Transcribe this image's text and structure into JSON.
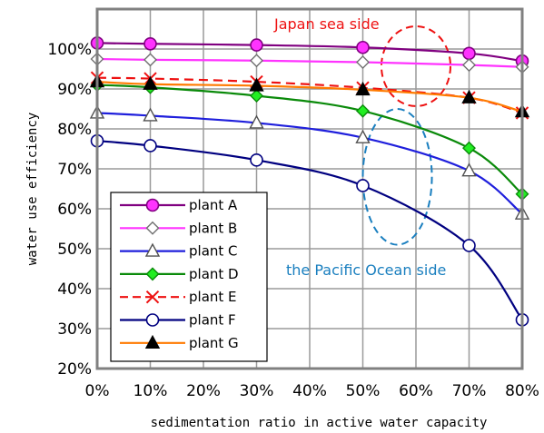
{
  "chart_data": {
    "type": "line",
    "xlabel": "sedimentation ratio in active water capacity",
    "ylabel": "water use efficiency",
    "x": [
      0,
      10,
      30,
      50,
      70,
      80
    ],
    "x_tick_values": [
      0,
      10,
      20,
      30,
      40,
      50,
      60,
      70,
      80
    ],
    "x_tick_labels": [
      "0%",
      "10%",
      "20%",
      "30%",
      "40%",
      "50%",
      "60%",
      "70%",
      "80%"
    ],
    "y_tick_values": [
      20,
      30,
      40,
      50,
      60,
      70,
      80,
      90,
      100
    ],
    "y_tick_labels": [
      "20%",
      "30%",
      "40%",
      "50%",
      "60%",
      "70%",
      "80%",
      "90%",
      "100%"
    ],
    "xlim": [
      0,
      80
    ],
    "ylim": [
      20,
      110
    ],
    "grid": true,
    "legend_position": "bottom-left",
    "series": [
      {
        "name": "plant A",
        "color": "#800080",
        "marker": "circle-filled",
        "marker_fill": "#ff33ff",
        "dash": "solid",
        "values": [
          101.5,
          101.3,
          101.0,
          100.4,
          98.9,
          97.0
        ]
      },
      {
        "name": "plant B",
        "color": "#ff33ff",
        "marker": "diamond-open",
        "marker_fill": "#ffffff",
        "dash": "solid",
        "values": [
          97.5,
          97.3,
          97.1,
          96.7,
          96.0,
          95.5
        ]
      },
      {
        "name": "plant C",
        "color": "#1f1fdc",
        "marker": "triangle-open",
        "marker_fill": "#ffffff",
        "dash": "solid",
        "values": [
          84.0,
          83.3,
          81.5,
          77.8,
          69.5,
          58.7
        ]
      },
      {
        "name": "plant D",
        "color": "#0a8a0a",
        "marker": "diamond-filled",
        "marker_fill": "#22ee22",
        "dash": "solid",
        "values": [
          91.0,
          90.4,
          88.3,
          84.5,
          75.2,
          63.7
        ]
      },
      {
        "name": "plant E",
        "color": "#ee1111",
        "marker": "x",
        "marker_fill": "none",
        "dash": "dashed",
        "values": [
          92.8,
          92.6,
          91.8,
          90.3,
          87.8,
          84.0
        ]
      },
      {
        "name": "plant F",
        "color": "#000080",
        "marker": "circle-open",
        "marker_fill": "#ffffff",
        "dash": "solid",
        "values": [
          77.0,
          75.8,
          72.2,
          65.8,
          50.8,
          32.2
        ]
      },
      {
        "name": "plant G",
        "color": "#ff7a00",
        "marker": "triangle-filled",
        "marker_fill": "#000000",
        "dash": "solid",
        "values": [
          91.8,
          91.2,
          90.8,
          89.8,
          87.8,
          84.3
        ]
      }
    ],
    "annotations": [
      {
        "text": "Japan sea side",
        "color": "#ee1111",
        "ellipse_center": [
          60,
          95.7
        ],
        "ellipse_radii": [
          6.5,
          10
        ]
      },
      {
        "text": "the Pacific Ocean side",
        "color": "#1a7fbf",
        "ellipse_center": [
          56.5,
          68
        ],
        "ellipse_radii": [
          6.5,
          17
        ]
      }
    ]
  }
}
